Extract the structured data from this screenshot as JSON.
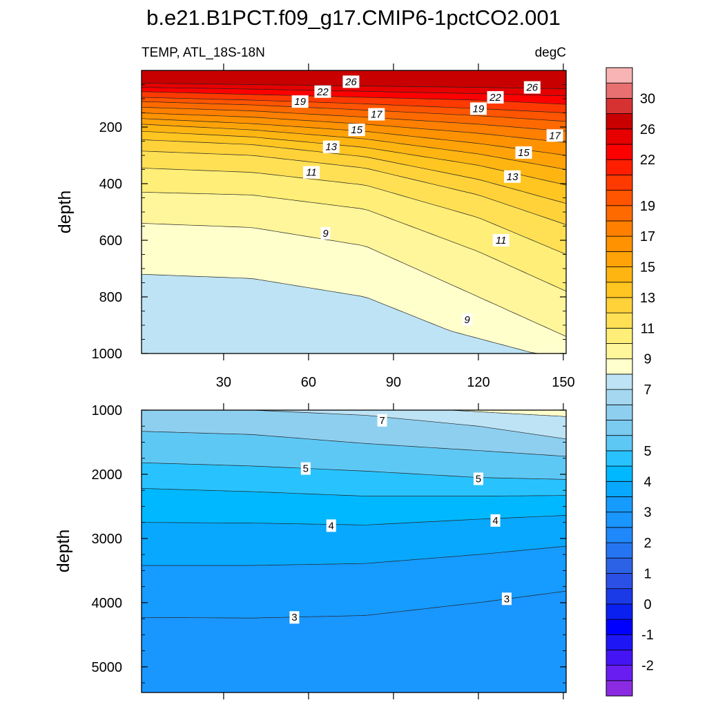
{
  "title": "b.e21.B1PCT.f09_g17.CMIP6-1pctCO2.001",
  "chart_data": [
    {
      "type": "contour",
      "panel": "upper",
      "left_label": "TEMP, ATL_18S-18N",
      "right_label": "degC",
      "ylabel": "depth",
      "xlim": [
        1,
        151
      ],
      "ylim": [
        1000,
        0
      ],
      "xticks": [
        "30",
        "60",
        "90",
        "120",
        "150"
      ],
      "xtick_values": [
        30,
        60,
        90,
        120,
        150
      ],
      "yticks": [
        "200",
        "400",
        "600",
        "800",
        "1000"
      ],
      "ytick_values": [
        200,
        400,
        600,
        800,
        1000
      ],
      "isotherms": [
        {
          "level": 28,
          "x": [
            1,
            151
          ],
          "depth": [
            0,
            0
          ]
        },
        {
          "level": 26,
          "x": [
            1,
            40,
            80,
            120,
            151
          ],
          "depth": [
            45,
            50,
            55,
            60,
            65
          ]
        },
        {
          "level": 24,
          "x": [
            1,
            40,
            80,
            120,
            151
          ],
          "depth": [
            60,
            66,
            74,
            82,
            90
          ]
        },
        {
          "level": 22,
          "x": [
            1,
            40,
            80,
            120,
            151
          ],
          "depth": [
            75,
            85,
            95,
            105,
            120
          ]
        },
        {
          "level": 20,
          "x": [
            1,
            40,
            80,
            120,
            151
          ],
          "depth": [
            95,
            105,
            118,
            135,
            150
          ]
        },
        {
          "level": 19,
          "x": [
            1,
            40,
            80,
            120,
            151
          ],
          "depth": [
            110,
            122,
            140,
            160,
            180
          ]
        },
        {
          "level": 18,
          "x": [
            1,
            40,
            80,
            120,
            151
          ],
          "depth": [
            130,
            143,
            165,
            190,
            215
          ]
        },
        {
          "level": 17,
          "x": [
            1,
            40,
            80,
            120,
            151
          ],
          "depth": [
            150,
            165,
            190,
            222,
            255
          ]
        },
        {
          "level": 16,
          "x": [
            1,
            40,
            80,
            120,
            151
          ],
          "depth": [
            170,
            188,
            215,
            258,
            300
          ]
        },
        {
          "level": 15,
          "x": [
            1,
            40,
            80,
            120,
            151
          ],
          "depth": [
            190,
            210,
            242,
            295,
            350
          ]
        },
        {
          "level": 14,
          "x": [
            1,
            40,
            80,
            120,
            151
          ],
          "depth": [
            215,
            235,
            272,
            335,
            405
          ]
        },
        {
          "level": 13,
          "x": [
            1,
            40,
            80,
            120,
            151
          ],
          "depth": [
            245,
            262,
            305,
            385,
            470
          ]
        },
        {
          "level": 12,
          "x": [
            1,
            40,
            80,
            120,
            151
          ],
          "depth": [
            285,
            300,
            345,
            440,
            545
          ]
        },
        {
          "level": 11,
          "x": [
            1,
            40,
            80,
            120,
            151
          ],
          "depth": [
            345,
            360,
            405,
            520,
            650
          ]
        },
        {
          "level": 10,
          "x": [
            1,
            40,
            80,
            120,
            151
          ],
          "depth": [
            430,
            440,
            490,
            640,
            780
          ]
        },
        {
          "level": 9,
          "x": [
            1,
            40,
            80,
            120,
            151
          ],
          "depth": [
            540,
            555,
            620,
            800,
            940
          ]
        },
        {
          "level": 8,
          "x": [
            1,
            40,
            80,
            110,
            140,
            151
          ],
          "depth": [
            720,
            735,
            800,
            920,
            1000,
            1000
          ]
        }
      ],
      "contour_labels": [
        {
          "text": "26",
          "x": 75,
          "depth": 40
        },
        {
          "text": "26",
          "x": 139,
          "depth": 60
        },
        {
          "text": "22",
          "x": 65,
          "depth": 75
        },
        {
          "text": "22",
          "x": 126,
          "depth": 95
        },
        {
          "text": "19",
          "x": 57,
          "depth": 110
        },
        {
          "text": "19",
          "x": 120,
          "depth": 135
        },
        {
          "text": "17",
          "x": 84,
          "depth": 155
        },
        {
          "text": "17",
          "x": 147,
          "depth": 230
        },
        {
          "text": "15",
          "x": 77,
          "depth": 210
        },
        {
          "text": "15",
          "x": 136,
          "depth": 290
        },
        {
          "text": "13",
          "x": 68,
          "depth": 270
        },
        {
          "text": "13",
          "x": 132,
          "depth": 375
        },
        {
          "text": "11",
          "x": 61,
          "depth": 360
        },
        {
          "text": "11",
          "x": 128,
          "depth": 600
        },
        {
          "text": "9",
          "x": 66,
          "depth": 575
        },
        {
          "text": "9",
          "x": 116,
          "depth": 880
        }
      ]
    },
    {
      "type": "contour",
      "panel": "lower",
      "ylabel": "depth",
      "xlim": [
        1,
        151
      ],
      "ylim": [
        5400,
        1000
      ],
      "yticks": [
        "1000",
        "2000",
        "3000",
        "4000",
        "5000"
      ],
      "ytick_values": [
        1000,
        2000,
        3000,
        4000,
        5000
      ],
      "isotherms": [
        {
          "level": 8,
          "x": [
            110,
            130,
            151
          ],
          "depth": [
            1000,
            1050,
            1100
          ]
        },
        {
          "level": 7,
          "x": [
            1,
            40,
            80,
            120,
            151
          ],
          "depth": [
            1000,
            1000,
            1080,
            1250,
            1450
          ]
        },
        {
          "level": 6,
          "x": [
            1,
            40,
            80,
            120,
            151
          ],
          "depth": [
            1330,
            1380,
            1520,
            1630,
            1720
          ]
        },
        {
          "level": 5,
          "x": [
            1,
            40,
            80,
            120,
            151
          ],
          "depth": [
            1820,
            1870,
            1950,
            2050,
            2080
          ]
        },
        {
          "level": 4.5,
          "x": [
            1,
            40,
            80,
            120,
            151
          ],
          "depth": [
            2220,
            2270,
            2340,
            2340,
            2330
          ]
        },
        {
          "level": 4,
          "x": [
            1,
            40,
            80,
            120,
            151
          ],
          "depth": [
            2750,
            2760,
            2790,
            2700,
            2640
          ]
        },
        {
          "level": 3.5,
          "x": [
            1,
            40,
            80,
            120,
            151
          ],
          "depth": [
            3420,
            3420,
            3390,
            3250,
            3120
          ]
        },
        {
          "level": 3,
          "x": [
            1,
            40,
            80,
            120,
            151
          ],
          "depth": [
            4230,
            4240,
            4200,
            4000,
            3820
          ]
        }
      ],
      "contour_labels": [
        {
          "text": "7",
          "x": 86,
          "depth": 1160
        },
        {
          "text": "5",
          "x": 59,
          "depth": 1910
        },
        {
          "text": "5",
          "x": 120,
          "depth": 2070
        },
        {
          "text": "4",
          "x": 68,
          "depth": 2800
        },
        {
          "text": "4",
          "x": 126,
          "depth": 2720
        },
        {
          "text": "3",
          "x": 55,
          "depth": 4230
        },
        {
          "text": "3",
          "x": 130,
          "depth": 3940
        }
      ]
    }
  ],
  "colorbar": {
    "levels": [
      -3,
      -2.5,
      -2,
      -1.5,
      -1,
      -0.5,
      0,
      0.5,
      1,
      1.5,
      2,
      2.5,
      3,
      3.5,
      4,
      4.5,
      5,
      5.5,
      6,
      6.5,
      7,
      8,
      9,
      10,
      11,
      12,
      13,
      14,
      15,
      16,
      17,
      18,
      19,
      20,
      21,
      22,
      24,
      26,
      28,
      30,
      32
    ],
    "colors": [
      "#8a2be2",
      "#6a1df0",
      "#4414f5",
      "#1f16f5",
      "#0000ff",
      "#0a20f0",
      "#1a3ae8",
      "#2b50e5",
      "#2c62e6",
      "#2575f2",
      "#1f88fa",
      "#1a96ff",
      "#169bff",
      "#08a8ff",
      "#00b8ff",
      "#28c3ff",
      "#5ec8f5",
      "#7bcbf0",
      "#8ecff0",
      "#a5d8f0",
      "#bde3f4",
      "#ffffcc",
      "#fff59a",
      "#ffee77",
      "#ffe055",
      "#ffd23a",
      "#ffc520",
      "#ffb511",
      "#ffa308",
      "#ff9200",
      "#ff7f00",
      "#ff6a00",
      "#ff5400",
      "#ff3a00",
      "#ff1e00",
      "#ff0000",
      "#e60000",
      "#c80000",
      "#d63232",
      "#e87070",
      "#f8b4b4"
    ],
    "tick_labels": [
      "-2",
      "-1",
      "0",
      "1",
      "2",
      "3",
      "4",
      "5",
      "7",
      "9",
      "11",
      "13",
      "15",
      "17",
      "19",
      "22",
      "26",
      "30"
    ]
  }
}
